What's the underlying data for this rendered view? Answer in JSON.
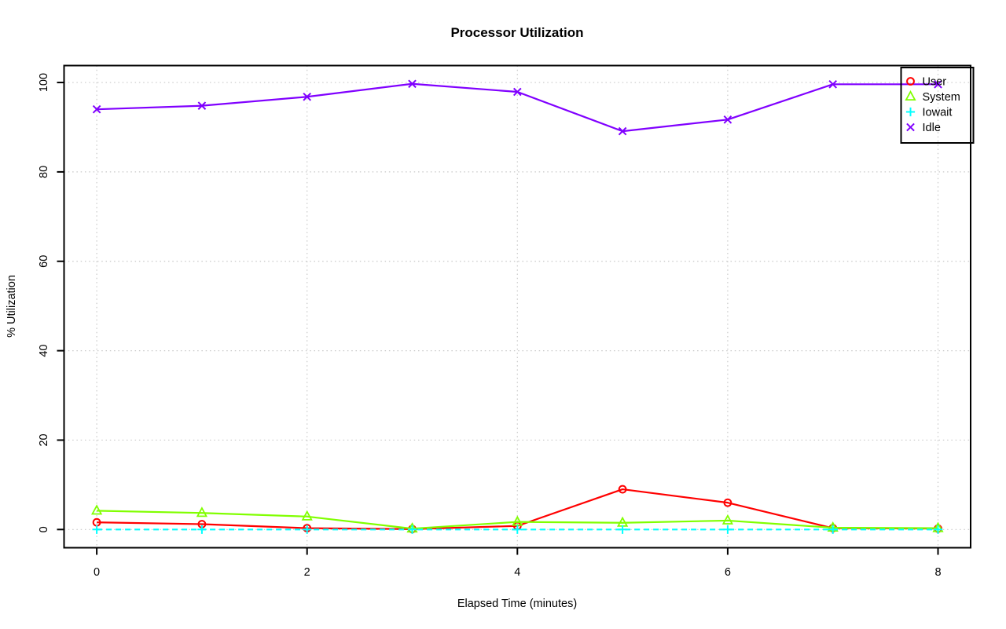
{
  "window": {
    "background_color": "#ffffff"
  },
  "chart_data": {
    "type": "line",
    "title": "Processor Utilization",
    "xlabel": "Elapsed Time (minutes)",
    "ylabel": "% Utilization",
    "x": [
      0,
      1,
      2,
      3,
      4,
      5,
      6,
      7,
      8
    ],
    "xticks": [
      0,
      2,
      4,
      6,
      8
    ],
    "yticks": [
      0,
      20,
      40,
      60,
      80,
      100
    ],
    "xlim": [
      0,
      8
    ],
    "ylim": [
      0,
      100
    ],
    "grid": "dotted",
    "grid_color": "#c8c8c8",
    "axis_color": "#000000",
    "legend_position": "top-right",
    "series": [
      {
        "name": "User",
        "color": "#ff0000",
        "marker": "circle",
        "line_style": "solid",
        "values": [
          1.6,
          1.2,
          0.3,
          0.1,
          0.8,
          9.0,
          6.0,
          0.3,
          0.2
        ]
      },
      {
        "name": "System",
        "color": "#80ff00",
        "marker": "triangle",
        "line_style": "solid",
        "values": [
          4.2,
          3.7,
          2.9,
          0.2,
          1.7,
          1.5,
          2.0,
          0.4,
          0.3
        ]
      },
      {
        "name": "Iowait",
        "color": "#00ffff",
        "marker": "plus",
        "line_style": "dashed",
        "values": [
          0,
          0,
          0,
          0,
          0,
          0,
          0,
          0,
          0
        ]
      },
      {
        "name": "Idle",
        "color": "#8000ff",
        "marker": "x",
        "line_style": "solid",
        "values": [
          94.0,
          94.8,
          96.8,
          99.7,
          97.9,
          89.1,
          91.7,
          99.6,
          99.6
        ]
      }
    ]
  }
}
